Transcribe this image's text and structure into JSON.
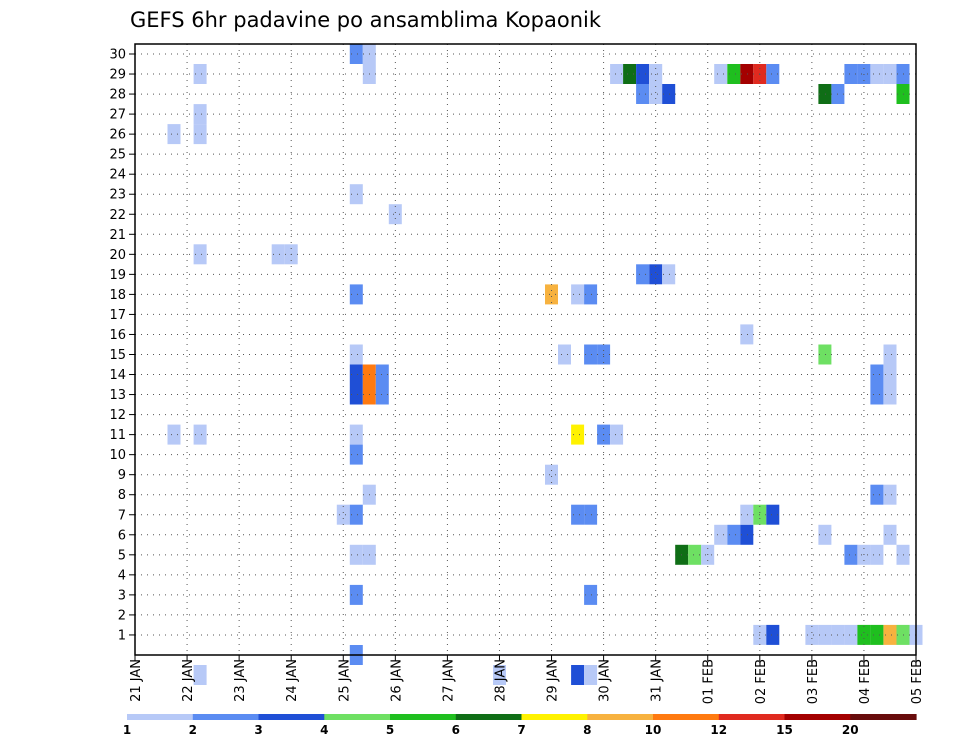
{
  "chart_data": {
    "type": "heatmap",
    "title": "GEFS 6hr padavine po ansamblima Kopaonik",
    "xlabel": "",
    "ylabel": "",
    "x_ticks": [
      "21 JAN",
      "22 JAN",
      "23 JAN",
      "24 JAN",
      "25 JAN",
      "26 JAN",
      "27 JAN",
      "28 JAN",
      "29 JAN",
      "30 JAN",
      "31 JAN",
      "01 FEB",
      "02 FEB",
      "03 FEB",
      "04 FEB",
      "05 FEB"
    ],
    "y_ticks": [
      "1",
      "2",
      "3",
      "4",
      "5",
      "6",
      "7",
      "8",
      "9",
      "10",
      "11",
      "12",
      "13",
      "14",
      "15",
      "16",
      "17",
      "18",
      "19",
      "20",
      "21",
      "22",
      "23",
      "24",
      "25",
      "26",
      "27",
      "28",
      "29",
      "30"
    ],
    "x_range_days": [
      0,
      15
    ],
    "y_range": [
      0,
      30
    ],
    "grid": true,
    "colorbar": {
      "labels": [
        "1",
        "2",
        "3",
        "4",
        "5",
        "6",
        "7",
        "8",
        "10",
        "12",
        "15",
        "20"
      ],
      "colors": [
        "#b7c9f7",
        "#5b8cf2",
        "#1f4fd6",
        "#6ee063",
        "#1fbf1f",
        "#0f6e16",
        "#fff200",
        "#f7b23f",
        "#ff7a10",
        "#e02a1f",
        "#a40000",
        "#680c0c"
      ]
    },
    "cells_note": "each cell: day offset from 21 JAN, member (row), color class index",
    "cells": [
      [
        4.25,
        30,
        2
      ],
      [
        4.5,
        30,
        1
      ],
      [
        1.25,
        29,
        1
      ],
      [
        4.5,
        29,
        1
      ],
      [
        9.25,
        29,
        1
      ],
      [
        9.5,
        29,
        6
      ],
      [
        9.75,
        29,
        3
      ],
      [
        10.0,
        29,
        1
      ],
      [
        11.25,
        29,
        1
      ],
      [
        11.5,
        29,
        5
      ],
      [
        11.75,
        29,
        11
      ],
      [
        12.0,
        29,
        10
      ],
      [
        12.25,
        29,
        2
      ],
      [
        13.75,
        29,
        2
      ],
      [
        14.0,
        29,
        2
      ],
      [
        14.25,
        29,
        1
      ],
      [
        14.5,
        29,
        1
      ],
      [
        14.75,
        29,
        2
      ],
      [
        9.75,
        28,
        2
      ],
      [
        10.0,
        28,
        1
      ],
      [
        10.25,
        28,
        3
      ],
      [
        13.25,
        28,
        6
      ],
      [
        13.5,
        28,
        2
      ],
      [
        14.75,
        28,
        5
      ],
      [
        1.25,
        27,
        1
      ],
      [
        0.75,
        26,
        1
      ],
      [
        1.25,
        26,
        1
      ],
      [
        4.25,
        23,
        1
      ],
      [
        5.0,
        22,
        1
      ],
      [
        1.25,
        20,
        1
      ],
      [
        2.75,
        20,
        1
      ],
      [
        3.0,
        20,
        1
      ],
      [
        9.75,
        19,
        2
      ],
      [
        10.0,
        19,
        3
      ],
      [
        10.25,
        19,
        1
      ],
      [
        4.25,
        18,
        2
      ],
      [
        8.0,
        18,
        8
      ],
      [
        8.5,
        18,
        1
      ],
      [
        8.75,
        18,
        2
      ],
      [
        11.75,
        16,
        1
      ],
      [
        4.25,
        15,
        1
      ],
      [
        8.25,
        15,
        1
      ],
      [
        8.75,
        15,
        2
      ],
      [
        9.0,
        15,
        2
      ],
      [
        13.25,
        15,
        4
      ],
      [
        14.5,
        15,
        1
      ],
      [
        4.25,
        14,
        3
      ],
      [
        4.5,
        14,
        9
      ],
      [
        4.75,
        14,
        2
      ],
      [
        14.25,
        14,
        2
      ],
      [
        14.5,
        14,
        1
      ],
      [
        4.25,
        13,
        3
      ],
      [
        4.5,
        13,
        9
      ],
      [
        4.75,
        13,
        2
      ],
      [
        14.25,
        13,
        2
      ],
      [
        14.5,
        13,
        1
      ],
      [
        0.75,
        11,
        1
      ],
      [
        1.25,
        11,
        1
      ],
      [
        4.25,
        11,
        1
      ],
      [
        8.5,
        11,
        7
      ],
      [
        9.0,
        11,
        2
      ],
      [
        9.25,
        11,
        1
      ],
      [
        4.25,
        10,
        2
      ],
      [
        8.0,
        9,
        1
      ],
      [
        4.5,
        8,
        1
      ],
      [
        14.25,
        8,
        2
      ],
      [
        14.5,
        8,
        1
      ],
      [
        4.0,
        7,
        1
      ],
      [
        4.25,
        7,
        2
      ],
      [
        8.5,
        7,
        2
      ],
      [
        8.75,
        7,
        2
      ],
      [
        11.75,
        7,
        1
      ],
      [
        12.0,
        7,
        4
      ],
      [
        12.25,
        7,
        3
      ],
      [
        11.25,
        6,
        1
      ],
      [
        11.5,
        6,
        2
      ],
      [
        11.75,
        6,
        3
      ],
      [
        13.25,
        6,
        1
      ],
      [
        14.5,
        6,
        1
      ],
      [
        4.25,
        5,
        1
      ],
      [
        4.5,
        5,
        1
      ],
      [
        10.5,
        5,
        6
      ],
      [
        10.75,
        5,
        4
      ],
      [
        11.0,
        5,
        1
      ],
      [
        13.75,
        5,
        2
      ],
      [
        14.0,
        5,
        1
      ],
      [
        14.25,
        5,
        1
      ],
      [
        14.75,
        5,
        1
      ],
      [
        4.25,
        3,
        2
      ],
      [
        8.75,
        3,
        2
      ],
      [
        12.0,
        1,
        1
      ],
      [
        12.25,
        1,
        3
      ],
      [
        13.0,
        1,
        1
      ],
      [
        13.25,
        1,
        1
      ],
      [
        13.5,
        1,
        1
      ],
      [
        13.75,
        1,
        1
      ],
      [
        14.0,
        1,
        5
      ],
      [
        14.25,
        1,
        5
      ],
      [
        14.5,
        1,
        8
      ],
      [
        14.75,
        1,
        4
      ],
      [
        15.0,
        1,
        1
      ],
      [
        4.25,
        0,
        2
      ],
      [
        1.25,
        -1,
        1
      ],
      [
        7.0,
        -1,
        1
      ],
      [
        8.5,
        -1,
        3
      ],
      [
        8.75,
        -1,
        1
      ]
    ]
  }
}
